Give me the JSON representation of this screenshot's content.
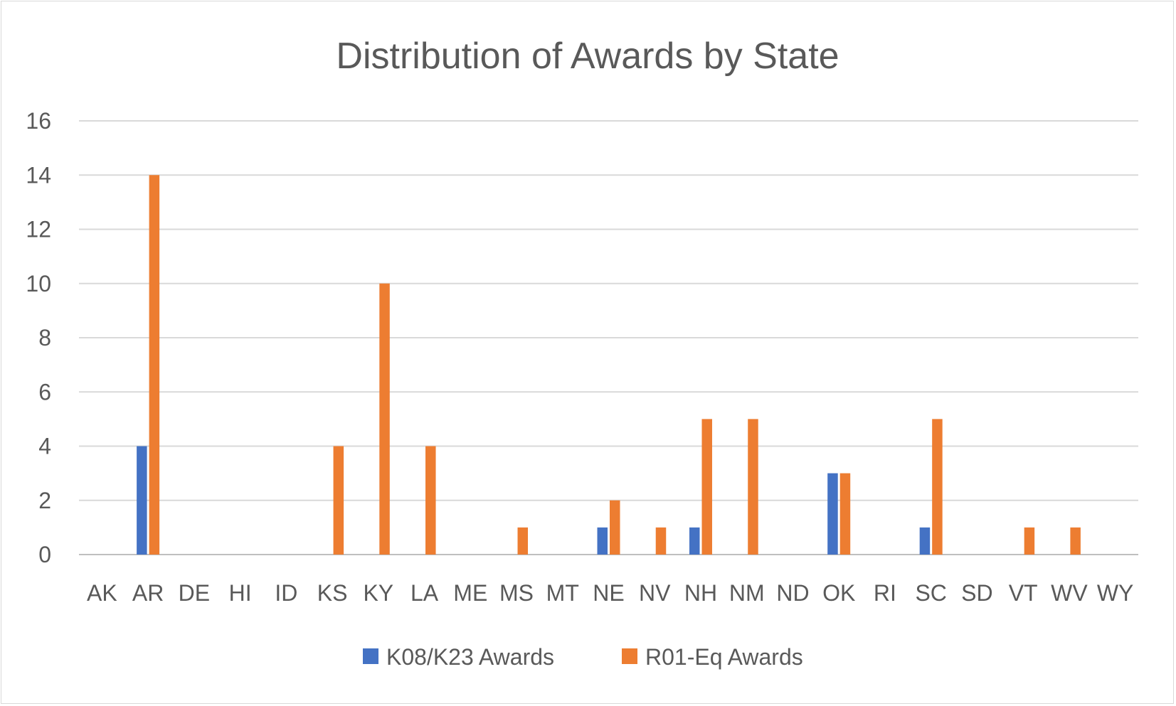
{
  "chart_data": {
    "type": "bar",
    "title": "Distribution of Awards by State",
    "xlabel": "",
    "ylabel": "",
    "ylim": [
      0,
      16
    ],
    "yticks": [
      0,
      2,
      4,
      6,
      8,
      10,
      12,
      14,
      16
    ],
    "grid": true,
    "legend_position": "bottom",
    "categories": [
      "AK",
      "AR",
      "DE",
      "HI",
      "ID",
      "KS",
      "KY",
      "LA",
      "ME",
      "MS",
      "MT",
      "NE",
      "NV",
      "NH",
      "NM",
      "ND",
      "OK",
      "RI",
      "SC",
      "SD",
      "VT",
      "WV",
      "WY"
    ],
    "series": [
      {
        "name": "K08/K23 Awards",
        "color": "#4472c4",
        "values": [
          0,
          4,
          0,
          0,
          0,
          0,
          0,
          0,
          0,
          0,
          0,
          1,
          0,
          1,
          0,
          0,
          3,
          0,
          1,
          0,
          0,
          0,
          0
        ]
      },
      {
        "name": "R01-Eq Awards",
        "color": "#ed7d31",
        "values": [
          0,
          14,
          0,
          0,
          0,
          4,
          10,
          4,
          0,
          1,
          0,
          2,
          1,
          5,
          5,
          0,
          3,
          0,
          5,
          0,
          1,
          1,
          0
        ]
      }
    ]
  }
}
